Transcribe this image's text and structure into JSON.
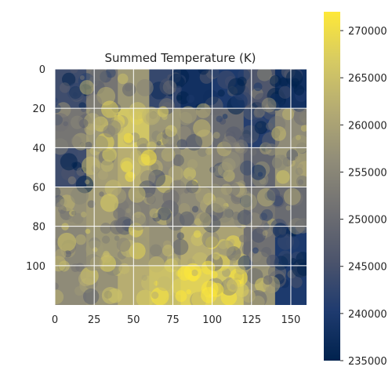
{
  "chart_data": {
    "type": "heatmap",
    "title": "Summed Temperature (K)",
    "xlabel": "",
    "ylabel": "",
    "x_range": [
      0,
      160
    ],
    "y_range": [
      0,
      120
    ],
    "y_inverted": true,
    "x_ticks": [
      0,
      25,
      50,
      75,
      100,
      125,
      150
    ],
    "y_ticks": [
      0,
      20,
      40,
      60,
      80,
      100
    ],
    "grid": true,
    "colormap": "cividis",
    "colormap_stops": [
      "#00224e",
      "#1f3b6f",
      "#4c546c",
      "#6f6f72",
      "#908c78",
      "#b3aa73",
      "#d6ca63",
      "#fee838"
    ],
    "colorbar": {
      "range": [
        235000,
        272000
      ],
      "ticks": [
        235000,
        240000,
        245000,
        250000,
        255000,
        260000,
        265000,
        270000
      ],
      "tick_labels": [
        "235000",
        "240000",
        "245000",
        "250000",
        "255000",
        "260000",
        "265000",
        "270000"
      ]
    },
    "grid_shape": [
      6,
      8
    ],
    "values_approx": [
      [
        244000,
        252000,
        258000,
        243000,
        238000,
        240000,
        246000,
        238000
      ],
      [
        252000,
        258000,
        266000,
        258000,
        253000,
        250000,
        241000,
        256000
      ],
      [
        244000,
        259000,
        262000,
        256000,
        258000,
        254000,
        249000,
        258000
      ],
      [
        257000,
        259000,
        254000,
        255000,
        256000,
        257000,
        252000,
        250000
      ],
      [
        255000,
        258000,
        259000,
        257000,
        262000,
        260000,
        251000,
        240000
      ],
      [
        256000,
        257000,
        262000,
        265000,
        268000,
        266000,
        258000,
        240000
      ]
    ]
  }
}
